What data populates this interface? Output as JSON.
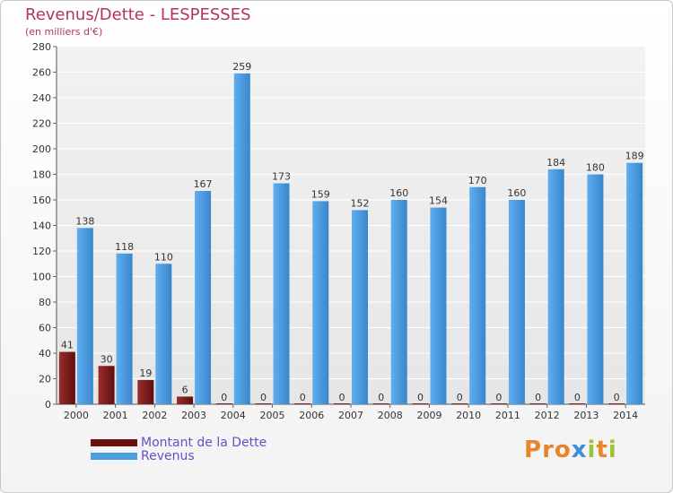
{
  "title": "Revenus/Dette - LESPESSES",
  "subtitle": "(en milliers d'€)",
  "logo_text": "Proxiti",
  "colors": {
    "debt": "#7a1f1f",
    "revenue": "#4a9ede",
    "title": "#b2365a",
    "legend_text": "#6a4ec9"
  },
  "legend": [
    {
      "label": "Montant de la Dette",
      "color": "#6b0f0f"
    },
    {
      "label": "Revenus",
      "color": "#4a9ede"
    }
  ],
  "chart_data": {
    "type": "bar",
    "categories": [
      "2000",
      "2001",
      "2002",
      "2003",
      "2004",
      "2005",
      "2006",
      "2007",
      "2008",
      "2009",
      "2010",
      "2011",
      "2012",
      "2013",
      "2014"
    ],
    "series": [
      {
        "name": "Montant de la Dette",
        "values": [
          41,
          30,
          19,
          6,
          0,
          0,
          0,
          0,
          0,
          0,
          0,
          0,
          0,
          0,
          0
        ]
      },
      {
        "name": "Revenus",
        "values": [
          138,
          118,
          110,
          167,
          259,
          173,
          159,
          152,
          160,
          154,
          170,
          160,
          184,
          180,
          189
        ]
      }
    ],
    "ylim": [
      0,
      280
    ],
    "yticks": [
      0,
      20,
      40,
      60,
      80,
      100,
      120,
      140,
      160,
      180,
      200,
      220,
      240,
      260,
      280
    ],
    "grid": true,
    "legend_position": "bottom-left"
  }
}
